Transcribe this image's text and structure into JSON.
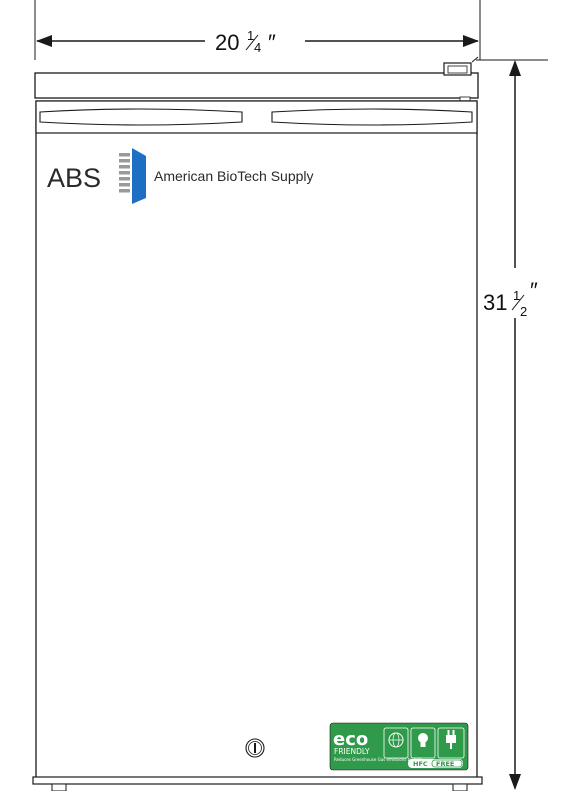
{
  "dimensions": {
    "width": {
      "whole": "20",
      "fraction_num": "1",
      "fraction_den": "4",
      "unit": "″"
    },
    "height": {
      "whole": "31",
      "fraction_num": "1",
      "fraction_den": "2",
      "unit": "″"
    }
  },
  "logo": {
    "abbr": "ABS",
    "name": "American BioTech Supply"
  },
  "eco_label": {
    "title": "eco",
    "subtitle": "FRIENDLY",
    "note": "Reduces Greenhouse Gas emissions by 50%",
    "hfc": "HFC",
    "free": "FREE"
  },
  "colors": {
    "line": "#1a1a1a",
    "eco_green": "#2f9a4a",
    "logo_blue": "#1d6fc4",
    "logo_grey": "#9a9a9a"
  }
}
